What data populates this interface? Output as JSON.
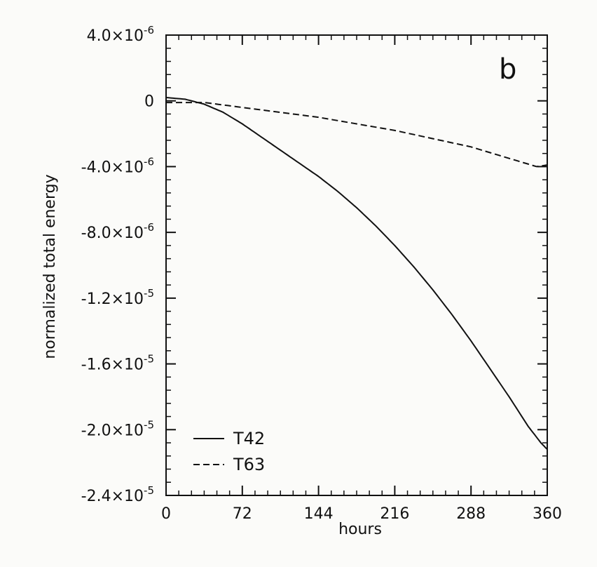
{
  "chart_data": {
    "type": "line",
    "panel_label": "b",
    "xlabel": "hours",
    "ylabel": "normalized total energy",
    "xlim": [
      0,
      360
    ],
    "ylim": [
      -2.4e-05,
      4e-06
    ],
    "x_ticks": [
      0,
      72,
      144,
      216,
      288,
      360
    ],
    "x_tick_labels": [
      "0",
      "72",
      "144",
      "216",
      "288",
      "360"
    ],
    "y_ticks": [
      4e-06,
      0,
      -4e-06,
      -8e-06,
      -1.2e-05,
      -1.6e-05,
      -2e-05,
      -2.4e-05
    ],
    "y_tick_labels": [
      {
        "mantissa": "4.0×10",
        "exp": "-6"
      },
      {
        "mantissa": "0",
        "exp": ""
      },
      {
        "mantissa": "-4.0×10",
        "exp": "-6"
      },
      {
        "mantissa": "-8.0×10",
        "exp": "-6"
      },
      {
        "mantissa": "-1.2×10",
        "exp": "-5"
      },
      {
        "mantissa": "-1.6×10",
        "exp": "-5"
      },
      {
        "mantissa": "-2.0×10",
        "exp": "-5"
      },
      {
        "mantissa": "-2.4×10",
        "exp": "-5"
      }
    ],
    "grid": false,
    "legend_position": "bottom-left",
    "series": [
      {
        "name": "T42",
        "style": "solid",
        "x": [
          0,
          18,
          36,
          54,
          72,
          90,
          108,
          126,
          144,
          162,
          180,
          198,
          216,
          234,
          252,
          270,
          288,
          306,
          324,
          342,
          354,
          360
        ],
        "y": [
          2e-07,
          1e-07,
          -2e-07,
          -7e-07,
          -1.4e-06,
          -2.2e-06,
          -3e-06,
          -3.8e-06,
          -4.6e-06,
          -5.5e-06,
          -6.5e-06,
          -7.6e-06,
          -8.8e-06,
          -1.01e-05,
          -1.15e-05,
          -1.3e-05,
          -1.46e-05,
          -1.63e-05,
          -1.8e-05,
          -1.98e-05,
          -2.08e-05,
          -2.12e-05
        ]
      },
      {
        "name": "T63",
        "style": "dashed",
        "x": [
          0,
          36,
          72,
          108,
          144,
          180,
          216,
          252,
          288,
          324,
          350,
          360
        ],
        "y": [
          -1e-07,
          -1e-07,
          -4e-07,
          -7e-07,
          -1e-06,
          -1.4e-06,
          -1.8e-06,
          -2.3e-06,
          -2.8e-06,
          -3.5e-06,
          -4e-06,
          -3.9e-06
        ]
      }
    ]
  }
}
